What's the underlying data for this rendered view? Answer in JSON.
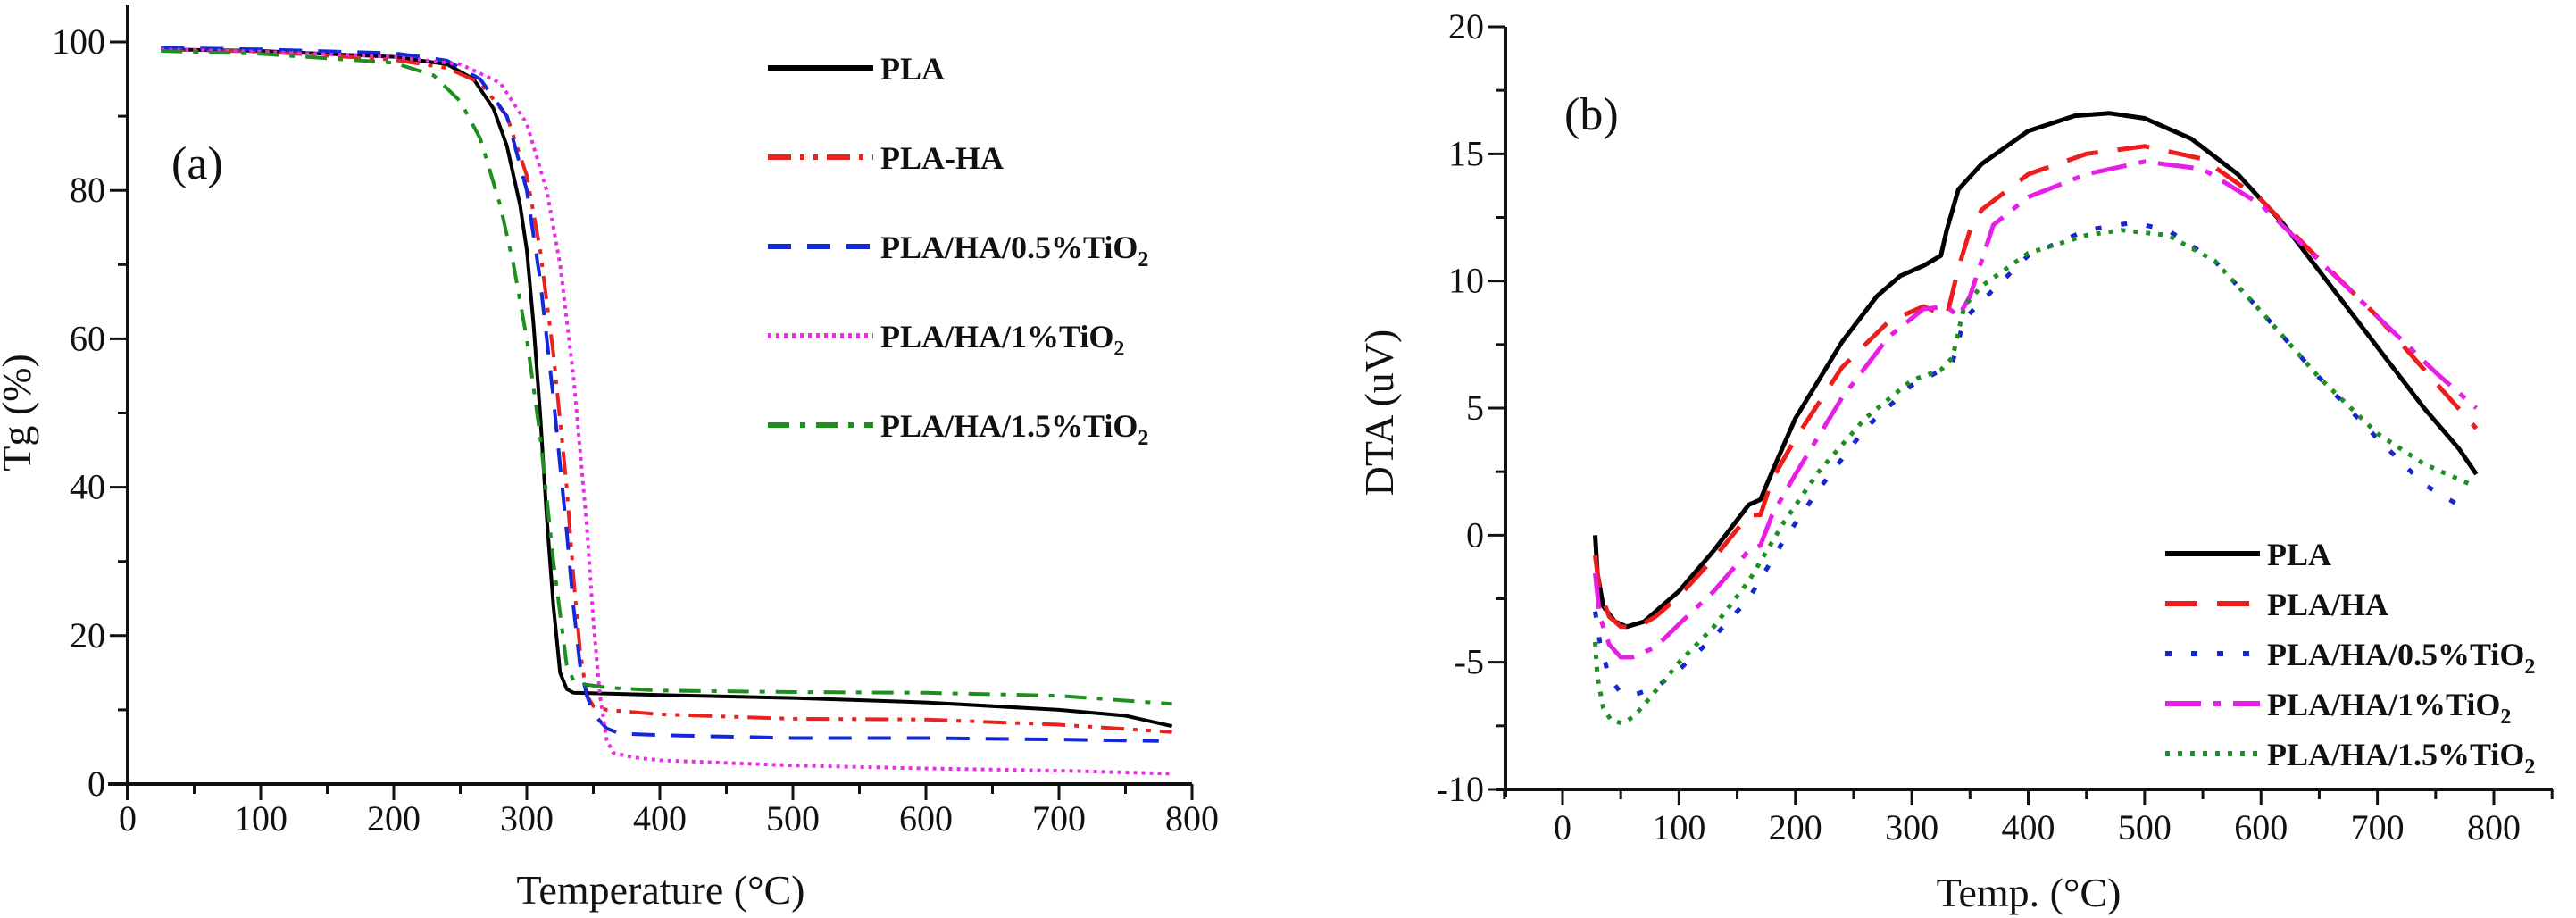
{
  "chart_data": [
    {
      "id": "tga",
      "type": "line",
      "panel_label": "(a)",
      "title": "",
      "xlabel": "Temperature (°C)",
      "ylabel": "Tg (%)",
      "xlim": [
        0,
        800
      ],
      "ylim": [
        0,
        100
      ],
      "xticks": [
        0,
        100,
        200,
        300,
        400,
        500,
        600,
        700,
        800
      ],
      "yticks": [
        0,
        20,
        40,
        60,
        80,
        100
      ],
      "grid": false,
      "legend_position": "top-right",
      "series": [
        {
          "name": "PLA",
          "label_main": "PLA",
          "label_sub": "",
          "color": "#000000",
          "dash": "solid",
          "x": [
            25,
            100,
            200,
            240,
            260,
            275,
            285,
            295,
            300,
            305,
            310,
            315,
            320,
            325,
            330,
            335,
            400,
            500,
            600,
            700,
            750,
            785
          ],
          "y": [
            99,
            98.8,
            98,
            97,
            95,
            91,
            86,
            78,
            72,
            62,
            50,
            36,
            24,
            15,
            12.8,
            12.3,
            12,
            11.6,
            11,
            10,
            9.2,
            7.8
          ]
        },
        {
          "name": "PLA-HA",
          "label_main": "PLA-HA",
          "label_sub": "",
          "color": "#e8221f",
          "dash": "dashdotdot",
          "x": [
            25,
            100,
            200,
            240,
            265,
            285,
            300,
            310,
            320,
            330,
            335,
            340,
            345,
            350,
            360,
            400,
            500,
            600,
            700,
            785
          ],
          "y": [
            99,
            98.7,
            97.6,
            96.5,
            94.5,
            90,
            82,
            72,
            58,
            40,
            28,
            18,
            12,
            10.5,
            10,
            9.4,
            8.8,
            8.7,
            8,
            7
          ]
        },
        {
          "name": "PLA/HA/0.5%TiO2",
          "label_main": "PLA/HA/0.5%TiO",
          "label_sub": "2",
          "color": "#1228d9",
          "dash": "dashed",
          "x": [
            25,
            100,
            200,
            240,
            265,
            285,
            300,
            310,
            320,
            330,
            335,
            340,
            345,
            350,
            360,
            370,
            400,
            500,
            600,
            700,
            775
          ],
          "y": [
            99.2,
            99,
            98.5,
            97.5,
            95,
            90,
            80,
            68,
            52,
            34,
            24,
            16,
            12,
            9.5,
            7.5,
            6.8,
            6.6,
            6.2,
            6.2,
            6,
            5.8
          ]
        },
        {
          "name": "PLA/HA/1%TiO2",
          "label_main": "PLA/HA/1%TiO",
          "label_sub": "2",
          "color": "#e62ee6",
          "dash": "dotted",
          "x": [
            25,
            100,
            200,
            250,
            280,
            300,
            315,
            325,
            335,
            345,
            350,
            355,
            360,
            365,
            380,
            400,
            500,
            600,
            700,
            785
          ],
          "y": [
            99,
            98.7,
            98,
            97,
            94.5,
            89,
            80,
            70,
            55,
            35,
            22,
            12,
            6,
            4.2,
            3.6,
            3.2,
            2.5,
            2.1,
            1.8,
            1.4
          ]
        },
        {
          "name": "PLA/HA/1.5%TiO2",
          "label_main": "PLA/HA/1.5%TiO",
          "label_sub": "2",
          "color": "#1e8f1e",
          "dash": "dashdot",
          "x": [
            25,
            100,
            200,
            230,
            250,
            265,
            280,
            290,
            300,
            310,
            320,
            330,
            335,
            340,
            360,
            400,
            500,
            600,
            700,
            785
          ],
          "y": [
            98.8,
            98.4,
            97.2,
            95.5,
            92,
            87,
            78,
            70,
            60,
            47,
            30,
            16,
            14,
            13.5,
            13,
            12.6,
            12.4,
            12.3,
            11.9,
            10.8
          ]
        }
      ]
    },
    {
      "id": "dta",
      "type": "line",
      "panel_label": "(b)",
      "title": "",
      "xlabel": "Temp. (°C)",
      "ylabel": "DTA (uV)",
      "xlim": [
        -50,
        850
      ],
      "ylim": [
        -10,
        20
      ],
      "xticks": [
        0,
        100,
        200,
        300,
        400,
        500,
        600,
        700,
        800
      ],
      "yticks": [
        -10,
        -5,
        0,
        5,
        10,
        15,
        20
      ],
      "grid": false,
      "legend_position": "bottom-right",
      "series": [
        {
          "name": "PLA",
          "label_main": "PLA",
          "label_sub": "",
          "color": "#000000",
          "dash": "solid",
          "x": [
            28,
            30,
            35,
            45,
            55,
            70,
            100,
            130,
            160,
            170,
            180,
            200,
            240,
            270,
            290,
            310,
            325,
            330,
            340,
            360,
            400,
            440,
            470,
            500,
            540,
            580,
            620,
            660,
            700,
            740,
            770,
            785
          ],
          "y": [
            0,
            -1.5,
            -2.8,
            -3.4,
            -3.6,
            -3.4,
            -2.2,
            -0.6,
            1.2,
            1.4,
            2.5,
            4.6,
            7.6,
            9.4,
            10.2,
            10.6,
            11,
            12,
            13.6,
            14.6,
            15.9,
            16.5,
            16.6,
            16.4,
            15.6,
            14.2,
            12.2,
            9.8,
            7.4,
            5,
            3.4,
            2.4
          ]
        },
        {
          "name": "PLA/HA",
          "label_main": "PLA/HA",
          "label_sub": "",
          "color": "#ee1c1c",
          "dash": "longdash",
          "x": [
            28,
            32,
            40,
            50,
            65,
            80,
            100,
            130,
            160,
            170,
            180,
            200,
            240,
            280,
            310,
            320,
            330,
            340,
            350,
            360,
            400,
            450,
            500,
            550,
            600,
            640,
            700,
            750,
            785
          ],
          "y": [
            -0.8,
            -2.2,
            -3.2,
            -3.6,
            -3.6,
            -3.2,
            -2.4,
            -0.9,
            0.8,
            0.8,
            2.2,
            3.8,
            6.6,
            8.4,
            9,
            8.8,
            8.6,
            10.5,
            12,
            12.8,
            14.2,
            15,
            15.3,
            14.8,
            13.2,
            11.3,
            8.6,
            6,
            4.2
          ]
        },
        {
          "name": "PLA/HA/0.5%TiO2",
          "label_main": "PLA/HA/0.5%TiO",
          "label_sub": "2",
          "color": "#1525d0",
          "dash": "dots",
          "x": [
            28,
            32,
            40,
            50,
            60,
            80,
            100,
            130,
            160,
            190,
            220,
            260,
            300,
            330,
            335,
            345,
            360,
            400,
            450,
            490,
            520,
            560,
            600,
            650,
            700,
            740,
            780
          ],
          "y": [
            -3,
            -4.2,
            -5.6,
            -6.2,
            -6.3,
            -6,
            -5.3,
            -4,
            -2.5,
            -0.2,
            1.8,
            4.2,
            5.9,
            6.6,
            6.8,
            8.5,
            9.2,
            11,
            12,
            12.3,
            12,
            10.8,
            8.8,
            6.2,
            3.8,
            2,
            0.9
          ]
        },
        {
          "name": "PLA/HA/1%TiO2",
          "label_main": "PLA/HA/1%TiO",
          "label_sub": "2",
          "color": "#e61ee6",
          "dash": "longdashdot",
          "x": [
            28,
            32,
            40,
            50,
            60,
            80,
            100,
            130,
            160,
            170,
            180,
            200,
            240,
            280,
            310,
            330,
            340,
            350,
            360,
            370,
            400,
            450,
            500,
            550,
            600,
            650,
            700,
            750,
            785
          ],
          "y": [
            -1.5,
            -3.2,
            -4.3,
            -4.8,
            -4.8,
            -4.4,
            -3.5,
            -2.2,
            -0.6,
            -0.4,
            0.8,
            2.4,
            5.4,
            7.8,
            8.9,
            9,
            8.6,
            9.4,
            10.8,
            12.2,
            13.3,
            14.2,
            14.7,
            14.4,
            13,
            10.8,
            8.6,
            6.4,
            5
          ]
        },
        {
          "name": "PLA/HA/1.5%TiO2",
          "label_main": "PLA/HA/1.5%TiO",
          "label_sub": "2",
          "color": "#1f8f22",
          "dash": "finedots",
          "x": [
            28,
            30,
            35,
            42,
            52,
            62,
            75,
            100,
            130,
            160,
            190,
            220,
            260,
            300,
            325,
            335,
            345,
            360,
            400,
            450,
            480,
            520,
            560,
            600,
            650,
            700,
            740,
            780
          ],
          "y": [
            -4.2,
            -5.6,
            -6.8,
            -7.3,
            -7.4,
            -7.1,
            -6.4,
            -5,
            -3.6,
            -1.8,
            0.5,
            2.5,
            4.6,
            6.1,
            6.5,
            7,
            9,
            9.8,
            11.1,
            11.8,
            12,
            11.8,
            10.8,
            8.8,
            6.2,
            4,
            2.8,
            2
          ]
        }
      ]
    }
  ]
}
